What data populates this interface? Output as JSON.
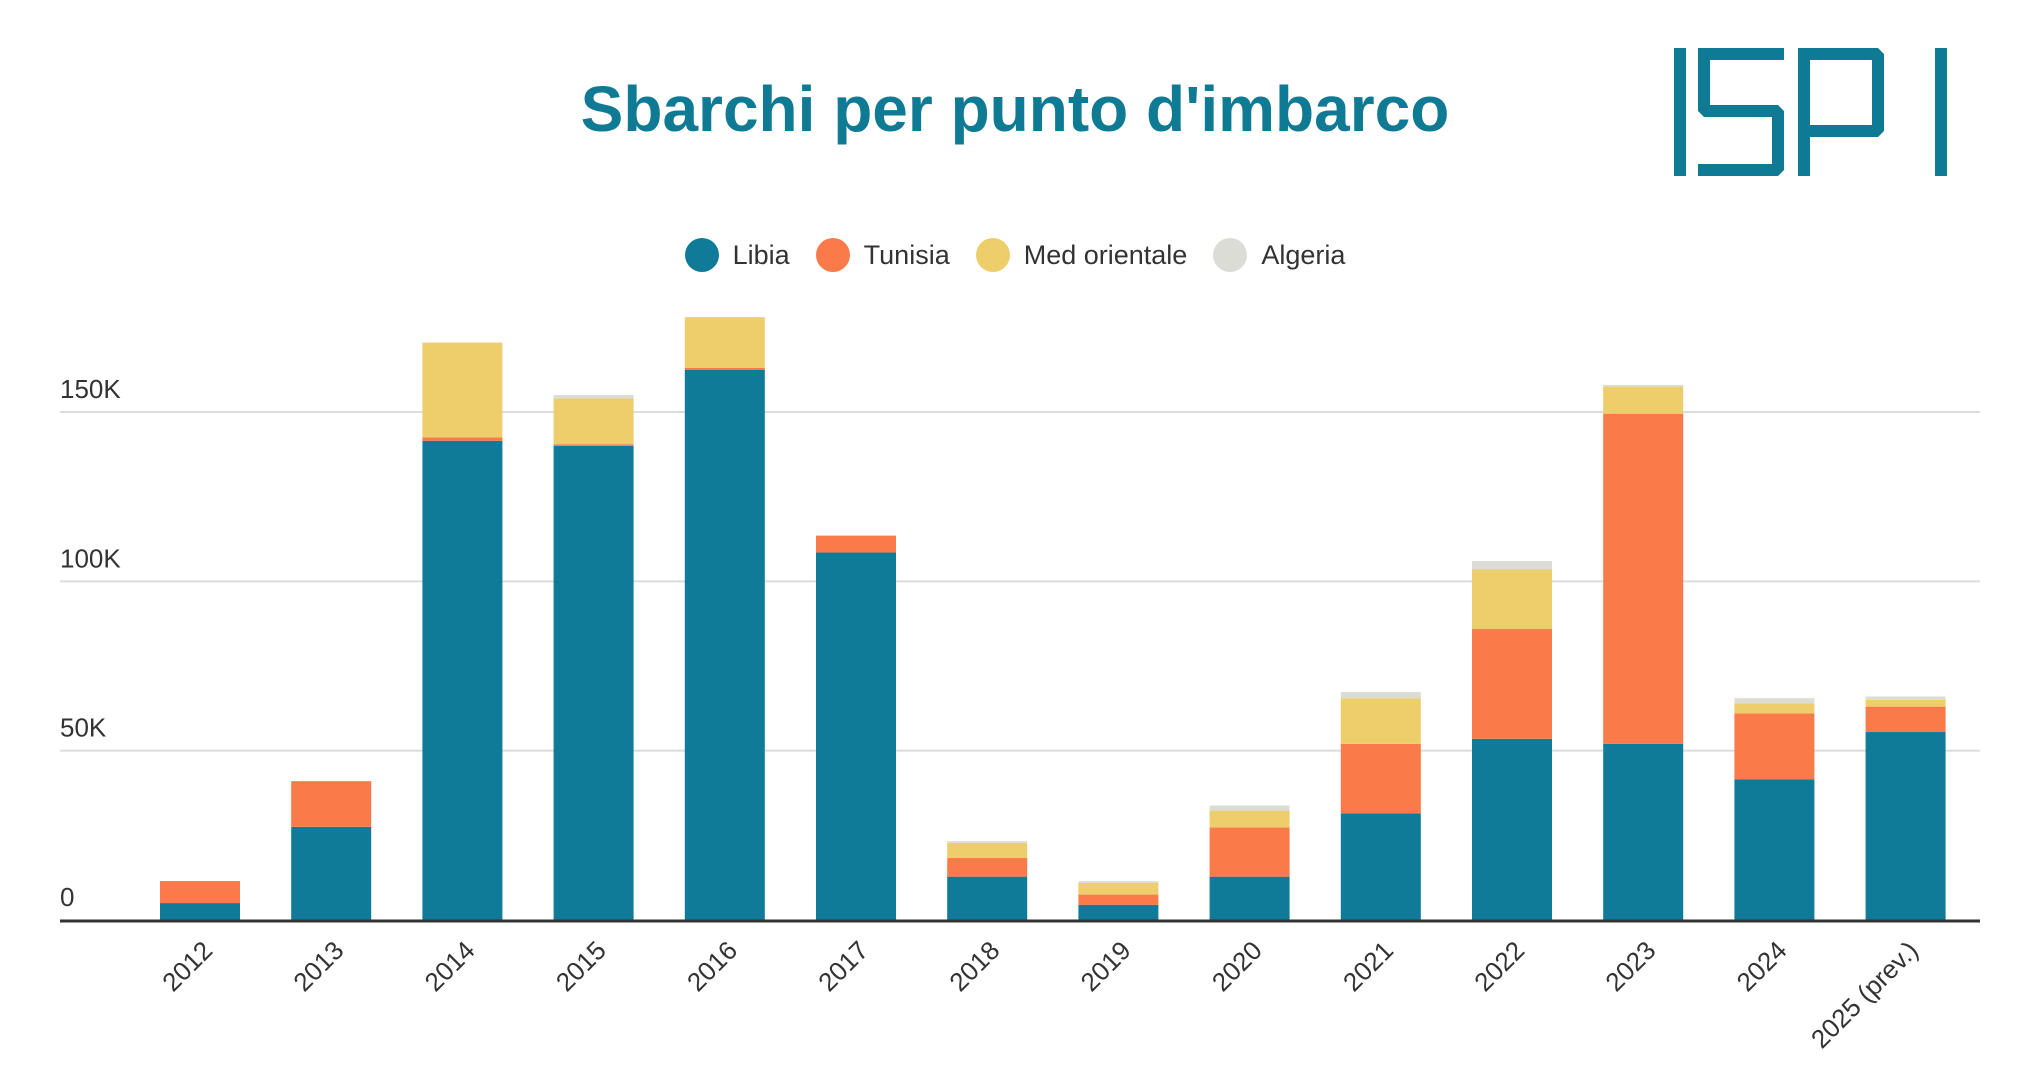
{
  "chart_data": {
    "type": "bar",
    "stacked": true,
    "title": "Sbarchi per punto d'imbarco",
    "categories": [
      "2012",
      "2013",
      "2014",
      "2015",
      "2016",
      "2017",
      "2018",
      "2019",
      "2020",
      "2021",
      "2022",
      "2023",
      "2024",
      "2025 (prev.)"
    ],
    "series": [
      {
        "name": "Libia",
        "color": "#0f7b99",
        "values": [
          5000,
          27500,
          141500,
          140000,
          162500,
          108500,
          12800,
          4500,
          12800,
          31500,
          53500,
          52000,
          41500,
          55500
        ]
      },
      {
        "name": "Tunisia",
        "color": "#fb7a4a",
        "values": [
          6500,
          13500,
          1000,
          500,
          500,
          5000,
          5500,
          3000,
          14500,
          20500,
          32500,
          97500,
          19500,
          7500
        ]
      },
      {
        "name": "Med orientale",
        "color": "#eecd6b",
        "values": [
          0,
          0,
          28000,
          13500,
          15000,
          0,
          4500,
          3500,
          5000,
          13500,
          17500,
          8000,
          3000,
          2000
        ]
      },
      {
        "name": "Algeria",
        "color": "#dcdcd6",
        "values": [
          0,
          0,
          0,
          1000,
          0,
          0,
          500,
          500,
          1500,
          1800,
          2500,
          500,
          1500,
          1000
        ]
      }
    ],
    "y_ticks": [
      0,
      50000,
      100000,
      150000
    ],
    "y_tick_labels": [
      "0",
      "50K",
      "100K",
      "150K"
    ],
    "ylim": [
      0,
      180000
    ],
    "legend_position": "top-center",
    "grid": true
  },
  "logo": {
    "text": "ISPI"
  }
}
